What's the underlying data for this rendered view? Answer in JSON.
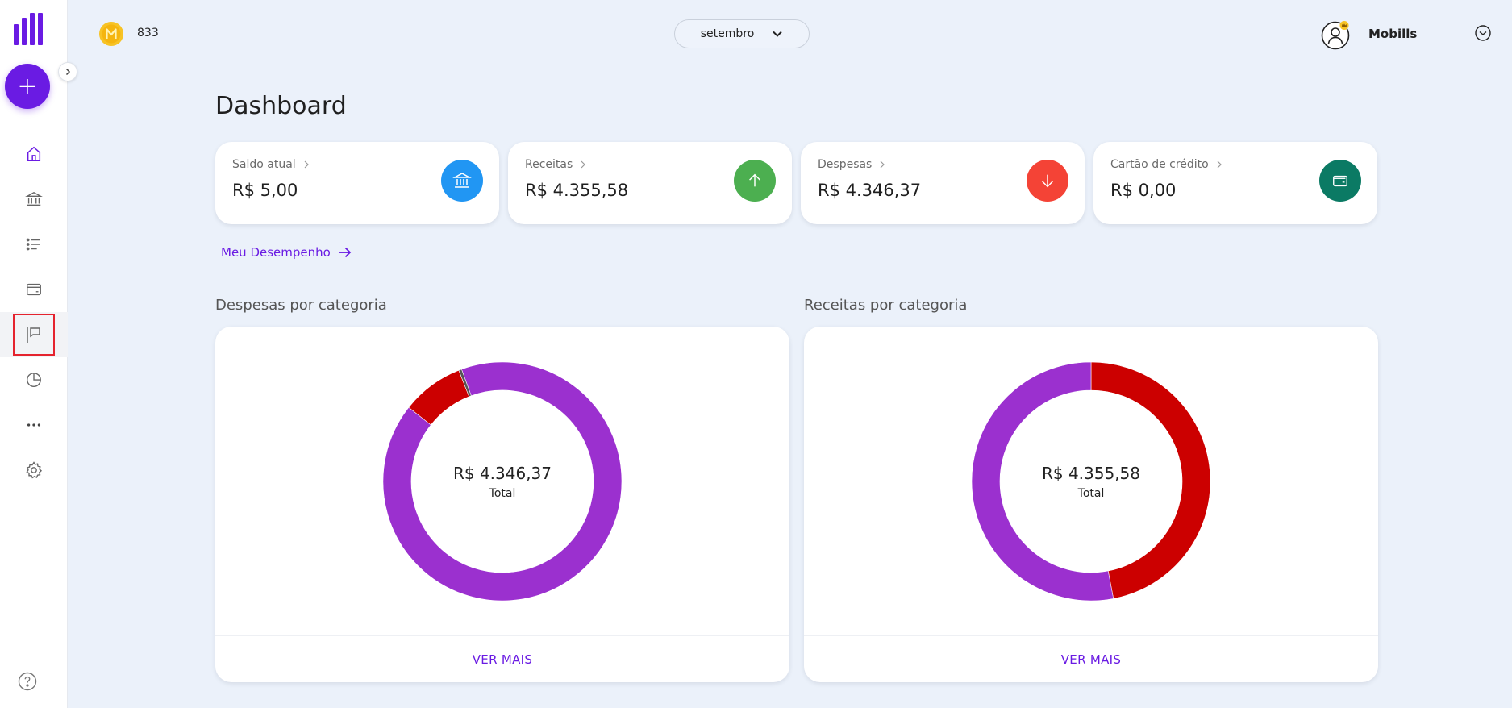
{
  "colors": {
    "brand": "#6a1be3",
    "balance": "#2196f3",
    "income": "#4caf50",
    "expense": "#f44336",
    "credit": "#0b7a64",
    "cat_purple": "#9b30cf",
    "cat_red": "#cc0000"
  },
  "sidebar": {
    "items": [
      {
        "name": "home",
        "icon": "home-icon"
      },
      {
        "name": "accounts",
        "icon": "bank-icon"
      },
      {
        "name": "transactions",
        "icon": "list-icon"
      },
      {
        "name": "credit-cards",
        "icon": "card-icon"
      },
      {
        "name": "goals",
        "icon": "flag-icon",
        "active": true
      },
      {
        "name": "reports",
        "icon": "pie-icon"
      },
      {
        "name": "more",
        "icon": "more-icon"
      },
      {
        "name": "settings",
        "icon": "gear-icon"
      }
    ]
  },
  "header": {
    "coins": "833",
    "month": "setembro",
    "user_name": "Mobills"
  },
  "page": {
    "title": "Dashboard",
    "performance_link": "Meu Desempenho"
  },
  "cards": [
    {
      "label": "Saldo atual",
      "value": "R$ 5,00",
      "icon": "bank-icon"
    },
    {
      "label": "Receitas",
      "value": "R$ 4.355,58",
      "icon": "arrow-up-icon"
    },
    {
      "label": "Despesas",
      "value": "R$ 4.346,37",
      "icon": "arrow-down-icon"
    },
    {
      "label": "Cartão de crédito",
      "value": "R$ 0,00",
      "icon": "wallet-icon"
    }
  ],
  "expenses_panel": {
    "title": "Despesas por categoria",
    "total": "R$ 4.346,37",
    "total_label": "Total",
    "footer": "VER MAIS"
  },
  "income_panel": {
    "title": "Receitas por categoria",
    "total": "R$ 4.355,58",
    "total_label": "Total",
    "footer": "VER MAIS"
  },
  "chart_data": [
    {
      "type": "pie",
      "values": [
        91.2,
        8.4,
        0.4
      ],
      "colors": [
        "#9b30cf",
        "#cc0000",
        "#555555"
      ]
    },
    {
      "type": "pie",
      "values": [
        47.0,
        53.0
      ],
      "colors": [
        "#cc0000",
        "#9b30cf"
      ]
    }
  ]
}
